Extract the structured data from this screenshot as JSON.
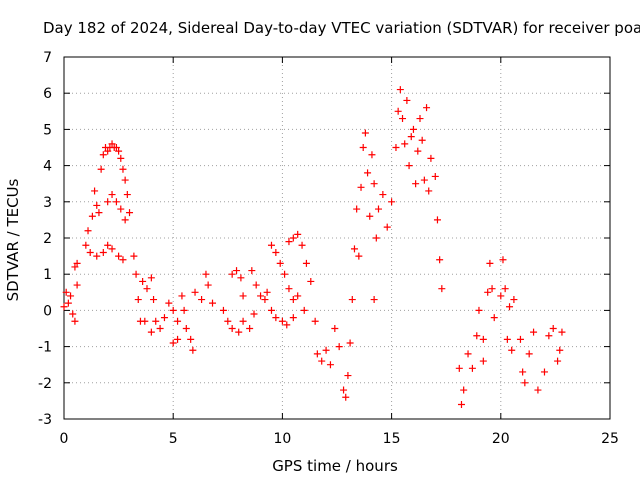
{
  "chart_data": {
    "type": "scatter",
    "title": "Day 182 of 2024, Sidereal Day-to-day VTEC variation (SDTVAR) for receiver poal",
    "xlabel": "GPS time / hours",
    "ylabel": "SDTVAR / TECUs",
    "xlim": [
      0,
      25
    ],
    "ylim": [
      -3,
      7
    ],
    "xticks": [
      "0",
      "5",
      "10",
      "15",
      "20",
      "25"
    ],
    "yticks": [
      "-3",
      "-2",
      "-1",
      "0",
      "1",
      "2",
      "3",
      "4",
      "5",
      "6",
      "7"
    ],
    "grid": true,
    "marker": "+",
    "marker_color": "#ff0000",
    "series": [
      {
        "name": "SDTVAR",
        "points": [
          [
            0.0,
            0.1
          ],
          [
            0.1,
            0.5
          ],
          [
            0.2,
            0.2
          ],
          [
            0.3,
            0.4
          ],
          [
            0.4,
            -0.1
          ],
          [
            0.5,
            -0.3
          ],
          [
            0.5,
            1.2
          ],
          [
            0.6,
            1.3
          ],
          [
            0.6,
            0.7
          ],
          [
            1.0,
            1.8
          ],
          [
            1.1,
            2.2
          ],
          [
            1.2,
            1.6
          ],
          [
            1.3,
            2.6
          ],
          [
            1.4,
            3.3
          ],
          [
            1.5,
            2.9
          ],
          [
            1.6,
            2.7
          ],
          [
            1.7,
            3.9
          ],
          [
            1.8,
            4.3
          ],
          [
            1.9,
            4.5
          ],
          [
            2.0,
            4.4
          ],
          [
            2.1,
            4.5
          ],
          [
            2.2,
            4.6
          ],
          [
            2.3,
            4.5
          ],
          [
            2.4,
            4.5
          ],
          [
            2.5,
            4.4
          ],
          [
            2.6,
            4.2
          ],
          [
            2.7,
            3.9
          ],
          [
            2.8,
            3.6
          ],
          [
            2.9,
            3.2
          ],
          [
            3.0,
            2.7
          ],
          [
            1.5,
            1.5
          ],
          [
            1.8,
            1.6
          ],
          [
            2.0,
            1.8
          ],
          [
            2.2,
            1.7
          ],
          [
            2.5,
            1.5
          ],
          [
            2.7,
            1.4
          ],
          [
            2.0,
            3.0
          ],
          [
            2.2,
            3.2
          ],
          [
            2.4,
            3.0
          ],
          [
            2.6,
            2.8
          ],
          [
            2.8,
            2.5
          ],
          [
            3.2,
            1.5
          ],
          [
            3.3,
            1.0
          ],
          [
            3.4,
            0.3
          ],
          [
            3.5,
            -0.3
          ],
          [
            3.6,
            0.8
          ],
          [
            3.8,
            0.6
          ],
          [
            4.0,
            0.9
          ],
          [
            4.1,
            0.3
          ],
          [
            3.7,
            -0.3
          ],
          [
            4.0,
            -0.6
          ],
          [
            4.2,
            -0.3
          ],
          [
            4.4,
            -0.5
          ],
          [
            4.6,
            -0.2
          ],
          [
            4.8,
            0.2
          ],
          [
            5.0,
            0.0
          ],
          [
            5.2,
            -0.3
          ],
          [
            5.4,
            0.4
          ],
          [
            5.5,
            0.0
          ],
          [
            5.6,
            -0.5
          ],
          [
            5.8,
            -0.8
          ],
          [
            5.9,
            -1.1
          ],
          [
            5.0,
            -0.9
          ],
          [
            5.2,
            -0.8
          ],
          [
            6.0,
            0.5
          ],
          [
            6.3,
            0.3
          ],
          [
            6.5,
            1.0
          ],
          [
            6.6,
            0.7
          ],
          [
            6.8,
            0.2
          ],
          [
            7.3,
            0.0
          ],
          [
            7.5,
            -0.3
          ],
          [
            7.7,
            -0.5
          ],
          [
            8.0,
            -0.6
          ],
          [
            8.2,
            -0.3
          ],
          [
            8.5,
            -0.5
          ],
          [
            8.7,
            -0.1
          ],
          [
            9.0,
            0.4
          ],
          [
            7.7,
            1.0
          ],
          [
            7.9,
            1.1
          ],
          [
            8.1,
            0.9
          ],
          [
            8.2,
            0.4
          ],
          [
            8.6,
            1.1
          ],
          [
            8.8,
            0.7
          ],
          [
            9.2,
            0.3
          ],
          [
            9.3,
            0.5
          ],
          [
            9.5,
            1.8
          ],
          [
            9.7,
            1.6
          ],
          [
            9.9,
            1.3
          ],
          [
            10.1,
            1.0
          ],
          [
            10.3,
            0.6
          ],
          [
            10.5,
            0.3
          ],
          [
            10.3,
            1.9
          ],
          [
            10.5,
            2.0
          ],
          [
            10.7,
            2.1
          ],
          [
            10.9,
            1.8
          ],
          [
            11.1,
            1.3
          ],
          [
            11.3,
            0.8
          ],
          [
            9.5,
            0.0
          ],
          [
            9.7,
            -0.2
          ],
          [
            10.0,
            -0.3
          ],
          [
            10.2,
            -0.4
          ],
          [
            10.5,
            -0.2
          ],
          [
            10.7,
            0.4
          ],
          [
            11.0,
            0.0
          ],
          [
            11.5,
            -0.3
          ],
          [
            11.6,
            -1.2
          ],
          [
            11.8,
            -1.4
          ],
          [
            12.0,
            -1.1
          ],
          [
            12.2,
            -1.5
          ],
          [
            12.4,
            -0.5
          ],
          [
            12.6,
            -1.0
          ],
          [
            12.8,
            -2.2
          ],
          [
            12.9,
            -2.4
          ],
          [
            13.0,
            -1.8
          ],
          [
            13.1,
            -0.9
          ],
          [
            13.2,
            0.3
          ],
          [
            13.3,
            1.7
          ],
          [
            13.4,
            2.8
          ],
          [
            13.5,
            1.5
          ],
          [
            13.6,
            3.4
          ],
          [
            13.7,
            4.5
          ],
          [
            13.8,
            4.9
          ],
          [
            13.9,
            3.8
          ],
          [
            14.0,
            2.6
          ],
          [
            14.1,
            4.3
          ],
          [
            14.2,
            3.5
          ],
          [
            14.3,
            2.0
          ],
          [
            14.2,
            0.3
          ],
          [
            14.4,
            2.8
          ],
          [
            14.6,
            3.2
          ],
          [
            14.8,
            2.3
          ],
          [
            15.0,
            3.0
          ],
          [
            15.2,
            4.5
          ],
          [
            15.3,
            5.5
          ],
          [
            15.4,
            6.1
          ],
          [
            15.5,
            5.3
          ],
          [
            15.6,
            4.6
          ],
          [
            15.7,
            5.8
          ],
          [
            15.8,
            4.0
          ],
          [
            15.9,
            4.8
          ],
          [
            16.0,
            5.0
          ],
          [
            16.1,
            3.5
          ],
          [
            16.2,
            4.4
          ],
          [
            16.3,
            5.3
          ],
          [
            16.4,
            4.7
          ],
          [
            16.5,
            3.6
          ],
          [
            16.6,
            5.6
          ],
          [
            16.7,
            3.3
          ],
          [
            16.8,
            4.2
          ],
          [
            17.0,
            3.7
          ],
          [
            17.1,
            2.5
          ],
          [
            17.2,
            1.4
          ],
          [
            17.3,
            0.6
          ],
          [
            18.1,
            -1.6
          ],
          [
            18.2,
            -2.6
          ],
          [
            18.3,
            -2.2
          ],
          [
            18.5,
            -1.2
          ],
          [
            18.7,
            -1.6
          ],
          [
            18.9,
            -0.7
          ],
          [
            19.0,
            0.0
          ],
          [
            19.2,
            -0.8
          ],
          [
            19.4,
            0.5
          ],
          [
            19.5,
            1.3
          ],
          [
            19.6,
            0.6
          ],
          [
            19.7,
            -0.2
          ],
          [
            19.2,
            -1.4
          ],
          [
            20.0,
            0.4
          ],
          [
            20.1,
            1.4
          ],
          [
            20.2,
            0.6
          ],
          [
            20.3,
            -0.8
          ],
          [
            20.4,
            0.1
          ],
          [
            20.5,
            -1.1
          ],
          [
            20.6,
            0.3
          ],
          [
            20.9,
            -0.8
          ],
          [
            21.0,
            -1.7
          ],
          [
            21.1,
            -2.0
          ],
          [
            21.3,
            -1.2
          ],
          [
            21.5,
            -0.6
          ],
          [
            21.7,
            -2.2
          ],
          [
            22.0,
            -1.7
          ],
          [
            22.2,
            -0.7
          ],
          [
            22.4,
            -0.5
          ],
          [
            22.6,
            -1.4
          ],
          [
            22.7,
            -1.1
          ],
          [
            22.8,
            -0.6
          ]
        ]
      }
    ]
  }
}
